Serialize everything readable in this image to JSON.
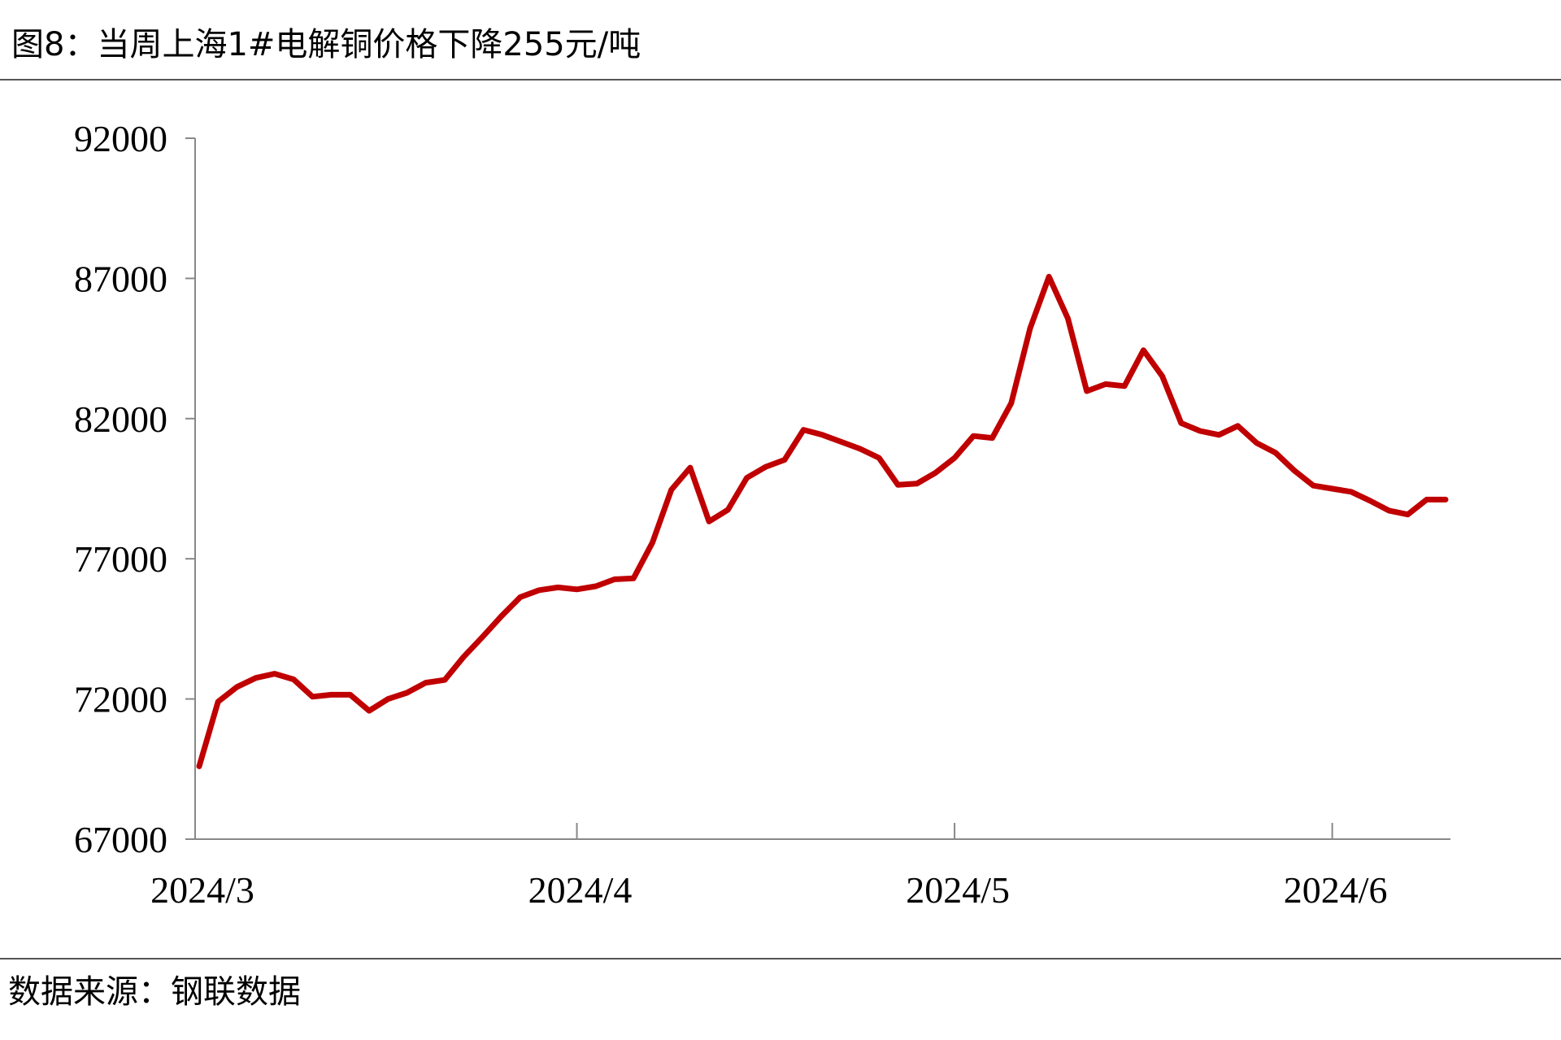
{
  "chart_data": {
    "type": "line",
    "title": "图8：当周上海1#电解铜价格下降255元/吨",
    "source": "数据来源：钢联数据",
    "categories": [
      "2024/3",
      null,
      null,
      null,
      null,
      null,
      null,
      null,
      null,
      null,
      null,
      null,
      null,
      null,
      null,
      null,
      null,
      null,
      null,
      null,
      "2024/4",
      null,
      null,
      null,
      null,
      null,
      null,
      null,
      null,
      null,
      null,
      null,
      null,
      null,
      null,
      null,
      null,
      null,
      null,
      null,
      "2024/5",
      null,
      null,
      null,
      null,
      null,
      null,
      null,
      null,
      null,
      null,
      null,
      null,
      null,
      null,
      null,
      null,
      null,
      null,
      null,
      "2024/6",
      null,
      null,
      null,
      null,
      null,
      null
    ],
    "series": [
      {
        "color": "#c00000",
        "values": [
          69600,
          71900,
          72430,
          72750,
          72900,
          72700,
          72080,
          72150,
          72150,
          71580,
          72000,
          72220,
          72580,
          72680,
          73500,
          74210,
          74950,
          75630,
          75880,
          75980,
          75910,
          76020,
          76270,
          76300,
          77580,
          79460,
          80250,
          78330,
          78750,
          79890,
          80280,
          80530,
          81600,
          81420,
          81170,
          80920,
          80600,
          79640,
          79680,
          80070,
          80600,
          81380,
          81310,
          82550,
          85220,
          87060,
          85570,
          82980,
          83230,
          83160,
          84440,
          83510,
          81840,
          81560,
          81420,
          81740,
          81130,
          80780,
          80140,
          79610,
          79500,
          79390,
          79070,
          78720,
          78580,
          79110,
          79110
        ]
      }
    ],
    "ylim": [
      67000,
      92000
    ],
    "yticks": [
      67000,
      72000,
      77000,
      82000,
      87000,
      92000
    ]
  }
}
